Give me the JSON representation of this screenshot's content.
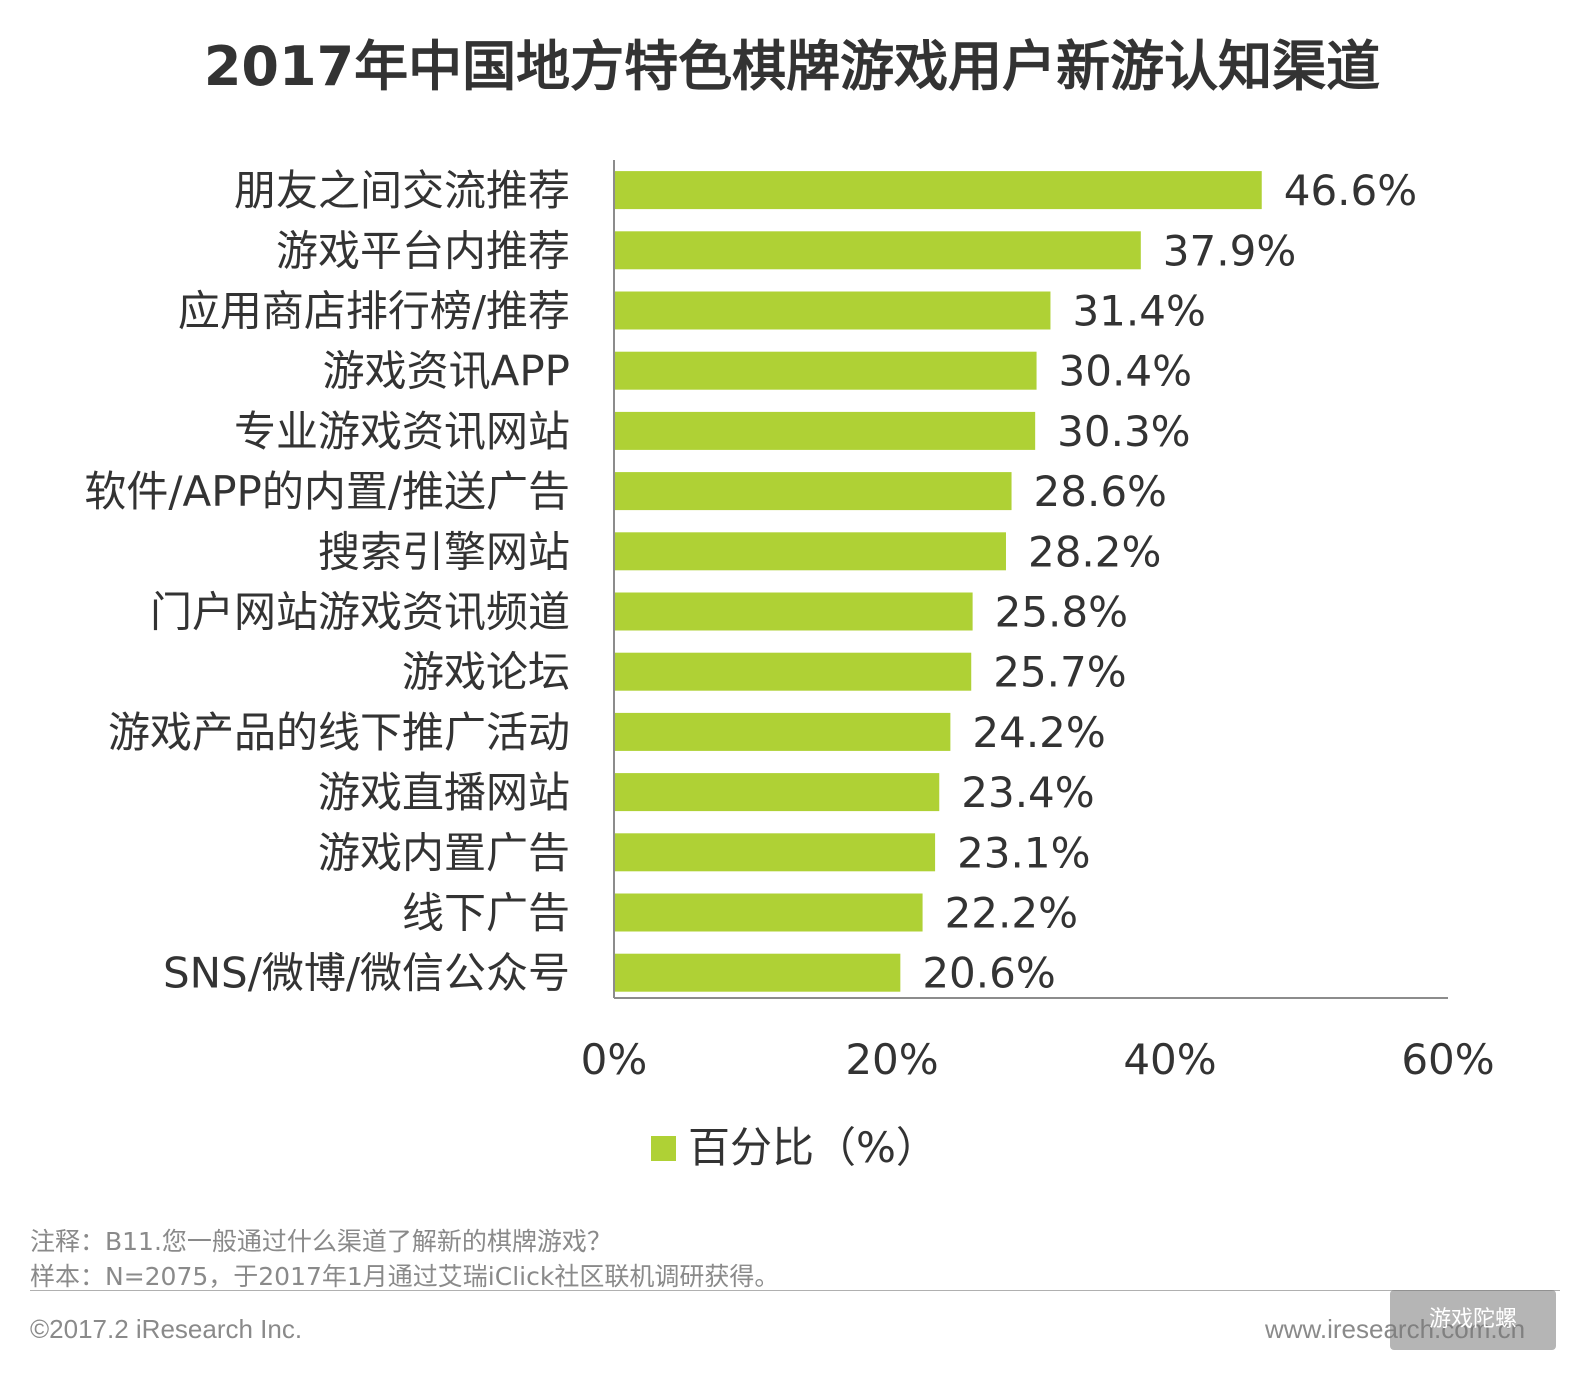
{
  "chart_data": {
    "type": "bar",
    "orientation": "horizontal",
    "title": "2017年中国地方特色棋牌游戏用户新游认知渠道",
    "categories": [
      "朋友之间交流推荐",
      "游戏平台内推荐",
      "应用商店排行榜/推荐",
      "游戏资讯APP",
      "专业游戏资讯网站",
      "软件/APP的内置/推送广告",
      "搜索引擎网站",
      "门户网站游戏资讯频道",
      "游戏论坛",
      "游戏产品的线下推广活动",
      "游戏直播网站",
      "游戏内置广告",
      "线下广告",
      "SNS/微博/微信公众号"
    ],
    "values": [
      46.6,
      37.9,
      31.4,
      30.4,
      30.3,
      28.6,
      28.2,
      25.8,
      25.7,
      24.2,
      23.4,
      23.1,
      22.2,
      20.6
    ],
    "value_labels": [
      "46.6%",
      "37.9%",
      "31.4%",
      "30.4%",
      "30.3%",
      "28.6%",
      "28.2%",
      "25.8%",
      "25.7%",
      "24.2%",
      "23.4%",
      "23.1%",
      "22.2%",
      "20.6%"
    ],
    "series": [
      {
        "name": "百分比（%）",
        "color": "#afd135"
      }
    ],
    "xlim": [
      0,
      60
    ],
    "xticks": [
      0,
      20,
      40,
      60
    ],
    "xtick_labels": [
      "0%",
      "20%",
      "40%",
      "60%"
    ],
    "grid": false,
    "legend": "bottom-center"
  },
  "notes": {
    "line1": "注释：B11.您一般通过什么渠道了解新的棋牌游戏？",
    "line2": "样本：N=2075，于2017年1月通过艾瑞iClick社区联机调研获得。"
  },
  "footer": {
    "copyright": "©2017.2 iResearch Inc.",
    "website": "www.iresearch.com.cn"
  },
  "watermark": {
    "text": "游戏陀螺"
  }
}
